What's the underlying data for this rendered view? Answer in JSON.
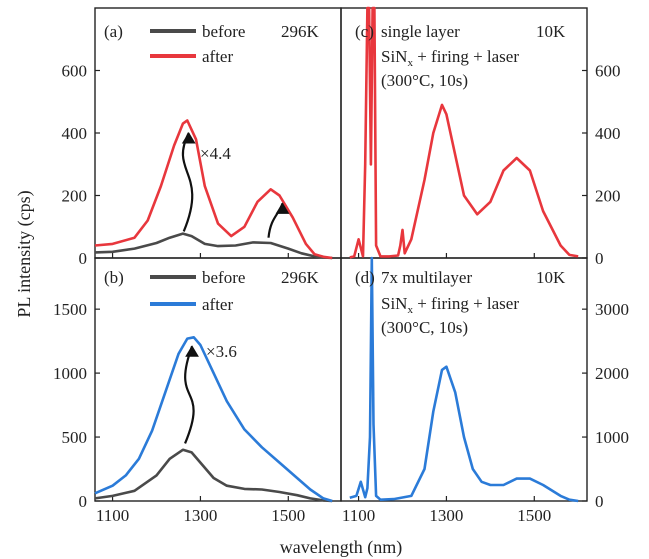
{
  "figure": {
    "ylabel": "PL intensity (cps)",
    "xlabel": "wavelength (nm)"
  },
  "chart_data": [
    {
      "type": "line",
      "panel": "(a)",
      "temperature": "296K",
      "xlim": [
        1060,
        1620
      ],
      "ylim": [
        0,
        800
      ],
      "yticks": [
        0,
        200,
        400,
        600
      ],
      "ytick_side": "left",
      "legend": [
        {
          "label": "before",
          "color": "#4a4a4a"
        },
        {
          "label": "after",
          "color": "#e8373d"
        }
      ],
      "annotations": [
        "×4.4"
      ],
      "series": [
        {
          "name": "before",
          "color": "#4a4a4a",
          "x": [
            1060,
            1100,
            1150,
            1200,
            1230,
            1260,
            1280,
            1310,
            1340,
            1380,
            1420,
            1460,
            1500,
            1530,
            1560,
            1580,
            1600
          ],
          "y": [
            18,
            20,
            30,
            48,
            65,
            78,
            70,
            45,
            38,
            40,
            50,
            48,
            30,
            15,
            5,
            2,
            0
          ]
        },
        {
          "name": "after",
          "color": "#e8373d",
          "x": [
            1060,
            1100,
            1150,
            1180,
            1210,
            1240,
            1260,
            1270,
            1290,
            1310,
            1340,
            1370,
            1400,
            1430,
            1460,
            1480,
            1510,
            1540,
            1560,
            1580,
            1600
          ],
          "y": [
            40,
            45,
            65,
            120,
            230,
            360,
            430,
            440,
            380,
            230,
            110,
            70,
            100,
            180,
            220,
            200,
            130,
            45,
            12,
            4,
            0
          ]
        }
      ]
    },
    {
      "type": "line",
      "panel": "(b)",
      "temperature": "296K",
      "xlim": [
        1060,
        1620
      ],
      "ylim": [
        0,
        1900
      ],
      "yticks": [
        0,
        500,
        1000,
        1500
      ],
      "ytick_side": "left",
      "legend": [
        {
          "label": "before",
          "color": "#4a4a4a"
        },
        {
          "label": "after",
          "color": "#2b7bd8"
        }
      ],
      "annotations": [
        "×3.6"
      ],
      "series": [
        {
          "name": "before",
          "color": "#4a4a4a",
          "x": [
            1060,
            1100,
            1150,
            1200,
            1230,
            1260,
            1280,
            1300,
            1330,
            1360,
            1400,
            1440,
            1480,
            1520,
            1550,
            1580,
            1600
          ],
          "y": [
            20,
            40,
            80,
            200,
            330,
            400,
            380,
            300,
            180,
            120,
            95,
            90,
            70,
            45,
            20,
            5,
            0
          ]
        },
        {
          "name": "after",
          "color": "#2b7bd8",
          "x": [
            1060,
            1100,
            1130,
            1160,
            1190,
            1220,
            1250,
            1270,
            1285,
            1300,
            1330,
            1360,
            1400,
            1440,
            1480,
            1520,
            1550,
            1580,
            1600
          ],
          "y": [
            60,
            120,
            200,
            330,
            550,
            850,
            1150,
            1270,
            1280,
            1220,
            1000,
            780,
            560,
            420,
            300,
            180,
            90,
            20,
            0
          ]
        }
      ]
    },
    {
      "type": "line",
      "panel": "(c)",
      "temperature": "10K",
      "sample": "single layer",
      "process_line1": "SiN",
      "process_sub": "x",
      "process_line1_rest": " + firing + laser",
      "process_line2": "(300°C, 10s)",
      "xlim": [
        1060,
        1620
      ],
      "ylim": [
        0,
        800
      ],
      "yticks": [
        0,
        200,
        400,
        600
      ],
      "ytick_side": "right",
      "series": [
        {
          "name": "",
          "color": "#e8373d",
          "x": [
            1080,
            1090,
            1100,
            1110,
            1115,
            1120,
            1124,
            1128,
            1132,
            1136,
            1140,
            1150,
            1170,
            1190,
            1195,
            1200,
            1205,
            1220,
            1250,
            1270,
            1290,
            1300,
            1320,
            1340,
            1370,
            1400,
            1430,
            1460,
            1490,
            1520,
            1560,
            1580,
            1600
          ],
          "y": [
            2,
            5,
            60,
            5,
            300,
            800,
            800,
            300,
            800,
            800,
            40,
            5,
            5,
            8,
            40,
            90,
            15,
            60,
            250,
            400,
            490,
            460,
            330,
            200,
            140,
            180,
            280,
            320,
            280,
            150,
            40,
            10,
            5
          ]
        }
      ]
    },
    {
      "type": "line",
      "panel": "(d)",
      "temperature": "10K",
      "sample": "7x multilayer",
      "process_line1": "SiN",
      "process_sub": "x",
      "process_line1_rest": " + firing + laser",
      "process_line2": "(300°C, 10s)",
      "xlim": [
        1060,
        1620
      ],
      "ylim": [
        0,
        3800
      ],
      "yticks": [
        0,
        1000,
        2000,
        3000
      ],
      "ytick_side": "right",
      "series": [
        {
          "name": "",
          "color": "#2b7bd8",
          "x": [
            1080,
            1095,
            1105,
            1115,
            1120,
            1126,
            1130,
            1134,
            1140,
            1150,
            1180,
            1220,
            1250,
            1270,
            1290,
            1300,
            1320,
            1340,
            1360,
            1380,
            1400,
            1430,
            1460,
            1490,
            1520,
            1560,
            1580,
            1600
          ],
          "y": [
            50,
            80,
            300,
            60,
            200,
            1000,
            3800,
            1200,
            80,
            20,
            30,
            80,
            500,
            1400,
            2050,
            2100,
            1700,
            1000,
            500,
            300,
            250,
            250,
            350,
            350,
            250,
            80,
            20,
            0
          ]
        }
      ]
    }
  ],
  "xticks": [
    1100,
    1300,
    1500
  ]
}
